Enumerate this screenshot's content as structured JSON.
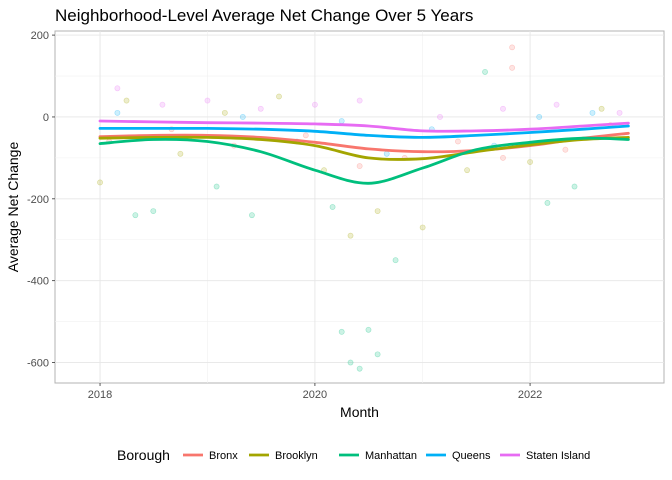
{
  "chart_data": {
    "type": "scatter",
    "title": "Neighborhood-Level Average Net Change Over 5 Years",
    "xlabel": "Month",
    "ylabel": "Average Net Change",
    "xlim": [
      "2017-08-01",
      "2023-04-01"
    ],
    "ylim": [
      -650,
      210
    ],
    "x_ticks": [
      {
        "value": "2018-01-01",
        "label": "2018"
      },
      {
        "value": "2020-01-01",
        "label": "2020"
      },
      {
        "value": "2022-01-01",
        "label": "2022"
      }
    ],
    "y_ticks": [
      {
        "value": 200,
        "label": "200"
      },
      {
        "value": 0,
        "label": "0"
      },
      {
        "value": -200,
        "label": "-200"
      },
      {
        "value": -400,
        "label": "-400"
      },
      {
        "value": -600,
        "label": "-600"
      }
    ],
    "grid": true,
    "legend": {
      "title": "Borough",
      "placement": "bottom"
    },
    "series": [
      {
        "name": "Bronx",
        "color": "#F8766D",
        "smooth": [
          [
            "2018-01-01",
            -48
          ],
          [
            "2018-07-01",
            -45
          ],
          [
            "2019-01-01",
            -45
          ],
          [
            "2019-07-01",
            -50
          ],
          [
            "2020-01-01",
            -62
          ],
          [
            "2020-07-01",
            -78
          ],
          [
            "2021-01-01",
            -85
          ],
          [
            "2021-07-01",
            -82
          ],
          [
            "2022-01-01",
            -70
          ],
          [
            "2022-07-01",
            -52
          ],
          [
            "2022-12-01",
            -40
          ]
        ],
        "points": [
          [
            "2018-02-01",
            -60
          ],
          [
            "2018-09-01",
            -30
          ],
          [
            "2019-04-01",
            -70
          ],
          [
            "2019-12-01",
            -45
          ],
          [
            "2020-06-01",
            -120
          ],
          [
            "2020-11-01",
            -100
          ],
          [
            "2021-05-01",
            -60
          ],
          [
            "2021-10-01",
            -100
          ],
          [
            "2021-11-01",
            170
          ],
          [
            "2021-11-01",
            120
          ],
          [
            "2022-05-01",
            -80
          ],
          [
            "2022-10-01",
            -20
          ]
        ]
      },
      {
        "name": "Brooklyn",
        "color": "#A3A500",
        "smooth": [
          [
            "2018-01-01",
            -52
          ],
          [
            "2018-07-01",
            -50
          ],
          [
            "2019-01-01",
            -50
          ],
          [
            "2019-07-01",
            -55
          ],
          [
            "2020-01-01",
            -70
          ],
          [
            "2020-07-01",
            -100
          ],
          [
            "2021-01-01",
            -102
          ],
          [
            "2021-07-01",
            -85
          ],
          [
            "2022-01-01",
            -68
          ],
          [
            "2022-07-01",
            -55
          ],
          [
            "2022-12-01",
            -50
          ]
        ],
        "points": [
          [
            "2018-01-01",
            -160
          ],
          [
            "2018-04-01",
            40
          ],
          [
            "2018-10-01",
            -90
          ],
          [
            "2019-03-01",
            10
          ],
          [
            "2019-09-01",
            50
          ],
          [
            "2020-02-01",
            -130
          ],
          [
            "2020-05-01",
            -290
          ],
          [
            "2020-08-01",
            -230
          ],
          [
            "2021-01-01",
            -270
          ],
          [
            "2021-06-01",
            -130
          ],
          [
            "2022-01-01",
            -110
          ],
          [
            "2022-09-01",
            20
          ]
        ]
      },
      {
        "name": "Manhattan",
        "color": "#00BF7D",
        "smooth": [
          [
            "2018-01-01",
            -65
          ],
          [
            "2018-07-01",
            -55
          ],
          [
            "2019-01-01",
            -60
          ],
          [
            "2019-07-01",
            -85
          ],
          [
            "2020-01-01",
            -130
          ],
          [
            "2020-07-01",
            -162
          ],
          [
            "2021-01-01",
            -125
          ],
          [
            "2021-07-01",
            -80
          ],
          [
            "2022-01-01",
            -62
          ],
          [
            "2022-07-01",
            -52
          ],
          [
            "2022-12-01",
            -55
          ]
        ],
        "points": [
          [
            "2018-05-01",
            -240
          ],
          [
            "2018-07-01",
            -230
          ],
          [
            "2019-02-01",
            -170
          ],
          [
            "2019-06-01",
            -240
          ],
          [
            "2020-03-01",
            -220
          ],
          [
            "2020-04-01",
            -525
          ],
          [
            "2020-05-01",
            -600
          ],
          [
            "2020-06-01",
            -615
          ],
          [
            "2020-07-01",
            -520
          ],
          [
            "2020-08-01",
            -580
          ],
          [
            "2020-10-01",
            -350
          ],
          [
            "2021-08-01",
            110
          ],
          [
            "2022-03-01",
            -210
          ],
          [
            "2022-06-01",
            -170
          ]
        ]
      },
      {
        "name": "Queens",
        "color": "#00B0F6",
        "smooth": [
          [
            "2018-01-01",
            -28
          ],
          [
            "2018-07-01",
            -28
          ],
          [
            "2019-01-01",
            -28
          ],
          [
            "2019-07-01",
            -30
          ],
          [
            "2020-01-01",
            -35
          ],
          [
            "2020-07-01",
            -45
          ],
          [
            "2021-01-01",
            -50
          ],
          [
            "2021-07-01",
            -45
          ],
          [
            "2022-01-01",
            -38
          ],
          [
            "2022-07-01",
            -30
          ],
          [
            "2022-12-01",
            -22
          ]
        ],
        "points": [
          [
            "2018-03-01",
            10
          ],
          [
            "2018-11-01",
            -50
          ],
          [
            "2019-05-01",
            0
          ],
          [
            "2019-11-01",
            -60
          ],
          [
            "2020-04-01",
            -10
          ],
          [
            "2020-09-01",
            -90
          ],
          [
            "2021-02-01",
            -30
          ],
          [
            "2021-09-01",
            -70
          ],
          [
            "2022-02-01",
            0
          ],
          [
            "2022-08-01",
            10
          ]
        ]
      },
      {
        "name": "Staten Island",
        "color": "#E76BF3",
        "smooth": [
          [
            "2018-01-01",
            -10
          ],
          [
            "2018-07-01",
            -12
          ],
          [
            "2019-01-01",
            -14
          ],
          [
            "2019-07-01",
            -15
          ],
          [
            "2020-01-01",
            -17
          ],
          [
            "2020-07-01",
            -22
          ],
          [
            "2021-01-01",
            -34
          ],
          [
            "2021-07-01",
            -34
          ],
          [
            "2022-01-01",
            -30
          ],
          [
            "2022-07-01",
            -22
          ],
          [
            "2022-12-01",
            -15
          ]
        ],
        "points": [
          [
            "2018-03-01",
            70
          ],
          [
            "2018-08-01",
            30
          ],
          [
            "2019-01-01",
            40
          ],
          [
            "2019-07-01",
            20
          ],
          [
            "2020-01-01",
            30
          ],
          [
            "2020-06-01",
            40
          ],
          [
            "2021-03-01",
            0
          ],
          [
            "2021-10-01",
            20
          ],
          [
            "2022-04-01",
            30
          ],
          [
            "2022-11-01",
            10
          ]
        ]
      }
    ]
  }
}
